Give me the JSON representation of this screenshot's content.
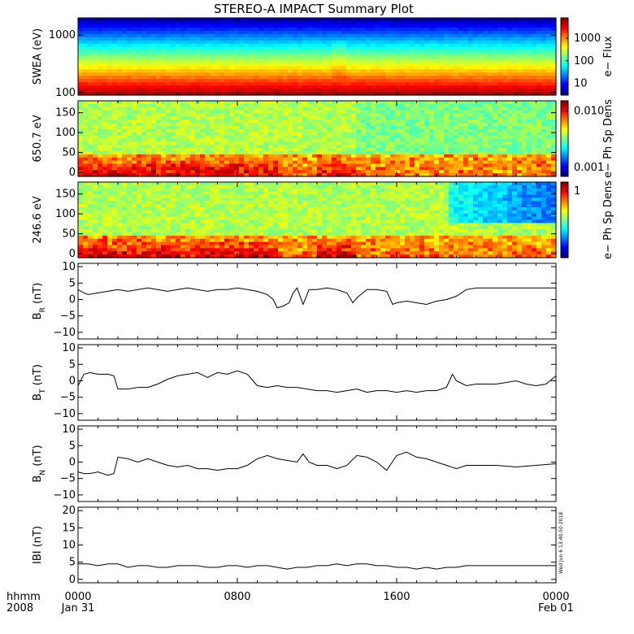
{
  "chart_data": {
    "type": "line",
    "title": "STEREO-A IMPACT Summary Plot",
    "time_axis": {
      "row_label_top": "hhmm",
      "row_label_bottom": "2008",
      "ticks": [
        {
          "time": "0000",
          "date": "Jan 31",
          "hour": 0
        },
        {
          "time": "0800",
          "date": "",
          "hour": 8
        },
        {
          "time": "1600",
          "date": "",
          "hour": 16
        },
        {
          "time": "0000",
          "date": "Feb 01",
          "hour": 24
        }
      ],
      "xlim_hours": [
        0,
        24
      ]
    },
    "stamp": "Wed Jun 6 13:40:50 2018",
    "panels": [
      {
        "id": "swea",
        "type": "heatmap",
        "ylabel": "SWEA (eV)",
        "yscale": "log",
        "ylim": [
          90,
          2000
        ],
        "yticks": [
          {
            "v": 100,
            "label": "100"
          },
          {
            "v": 1000,
            "label": "1000"
          }
        ],
        "colorbar": {
          "label": "e− Flux",
          "scale": "log",
          "range": [
            3,
            8000
          ],
          "ticks": [
            {
              "v": 10,
              "label": "10"
            },
            {
              "v": 100,
              "label": "100"
            },
            {
              "v": 1000,
              "label": "1000"
            }
          ]
        }
      },
      {
        "id": "pad650",
        "type": "heatmap",
        "ylabel": "650.7 eV",
        "ylim": [
          -10,
          180
        ],
        "yticks": [
          {
            "v": 0,
            "label": "0"
          },
          {
            "v": 50,
            "label": "50"
          },
          {
            "v": 100,
            "label": "100"
          },
          {
            "v": 150,
            "label": "150"
          }
        ],
        "colorbar": {
          "label": "e− Ph Sp Dens",
          "scale": "log",
          "range": [
            0.0007,
            0.015
          ],
          "ticks": [
            {
              "v": 0.001,
              "label": "0.001"
            },
            {
              "v": 0.01,
              "label": "0.010"
            }
          ]
        }
      },
      {
        "id": "pad246",
        "type": "heatmap",
        "ylabel": "246.6 eV",
        "ylim": [
          -10,
          180
        ],
        "yticks": [
          {
            "v": 0,
            "label": "0"
          },
          {
            "v": 50,
            "label": "50"
          },
          {
            "v": 100,
            "label": "100"
          },
          {
            "v": 150,
            "label": "150"
          }
        ],
        "colorbar": {
          "label": "e− Ph Sp Dens",
          "scale": "log",
          "range": [
            0.05,
            1.5
          ],
          "ticks": [
            {
              "v": 1,
              "label": "1"
            }
          ]
        }
      },
      {
        "id": "br",
        "type": "line",
        "ylabel": "B",
        "ylabel_sub": "R",
        "ylabel_unit": "(nT)",
        "ylim": [
          -12,
          11
        ],
        "yticks": [
          {
            "v": -10,
            "label": "−10"
          },
          {
            "v": -5,
            "label": "−5"
          },
          {
            "v": 0,
            "label": "0"
          },
          {
            "v": 5,
            "label": "5"
          },
          {
            "v": 10,
            "label": "10"
          }
        ],
        "x": [
          0,
          0.3,
          0.5,
          1,
          1.5,
          2,
          2.5,
          3,
          3.5,
          4,
          4.5,
          5,
          5.5,
          6,
          6.5,
          7,
          7.5,
          8,
          8.5,
          9,
          9.5,
          9.8,
          10,
          10.3,
          10.6,
          10.8,
          11,
          11.3,
          11.6,
          12,
          12.5,
          13,
          13.5,
          13.8,
          14,
          14.5,
          15,
          15.5,
          15.8,
          16,
          16.5,
          17,
          17.5,
          18,
          18.5,
          19,
          19.5,
          20,
          21,
          22,
          23,
          24
        ],
        "y": [
          3,
          2,
          1.5,
          2,
          2.5,
          3,
          2.5,
          3,
          3.5,
          3,
          2.5,
          3,
          3.5,
          3,
          2.5,
          3,
          3,
          3.5,
          3,
          2.5,
          1.5,
          0,
          -2.5,
          -2,
          -1,
          2,
          3.5,
          -1.5,
          3,
          3,
          3.5,
          3,
          2,
          -1,
          0.5,
          3,
          3,
          2.5,
          -1.5,
          -1,
          -0.5,
          -1,
          -1.5,
          -0.5,
          0,
          1,
          3,
          3.5,
          3.5,
          3.5,
          3.5,
          3.5
        ]
      },
      {
        "id": "bt",
        "type": "line",
        "ylabel": "B",
        "ylabel_sub": "T",
        "ylabel_unit": "(nT)",
        "ylim": [
          -12,
          11
        ],
        "yticks": [
          {
            "v": -10,
            "label": "−10"
          },
          {
            "v": -5,
            "label": "−5"
          },
          {
            "v": 0,
            "label": "0"
          },
          {
            "v": 5,
            "label": "5"
          },
          {
            "v": 10,
            "label": "10"
          }
        ],
        "x": [
          0,
          0.3,
          0.6,
          1,
          1.5,
          1.8,
          2,
          2.5,
          3,
          3.5,
          4,
          4.5,
          5,
          5.5,
          6,
          6.5,
          7,
          7.5,
          8,
          8.5,
          9,
          9.5,
          10,
          10.5,
          11,
          11.5,
          12,
          12.5,
          13,
          13.5,
          14,
          14.5,
          15,
          15.5,
          16,
          16.5,
          17,
          17.5,
          18,
          18.5,
          18.8,
          19,
          19.5,
          20,
          21,
          22,
          22.5,
          23,
          23.5,
          24
        ],
        "y": [
          -1.5,
          2,
          2.5,
          2,
          2,
          1.5,
          -2.5,
          -2.5,
          -2,
          -2,
          -1,
          0.5,
          1.5,
          2,
          2.5,
          1,
          2.5,
          2,
          3,
          2,
          -1.5,
          -2,
          -1.5,
          -2,
          -2,
          -2.5,
          -3,
          -3,
          -3.5,
          -3,
          -2.5,
          -3.5,
          -3,
          -3,
          -3.5,
          -3,
          -3.5,
          -3,
          -3,
          -2,
          2,
          0,
          -1.5,
          -1,
          -1,
          0,
          -1,
          -1.5,
          -1,
          1.5
        ]
      },
      {
        "id": "bn",
        "type": "line",
        "ylabel": "B",
        "ylabel_sub": "N",
        "ylabel_unit": "(nT)",
        "ylim": [
          -12,
          11
        ],
        "yticks": [
          {
            "v": -10,
            "label": "−10"
          },
          {
            "v": -5,
            "label": "−5"
          },
          {
            "v": 0,
            "label": "0"
          },
          {
            "v": 5,
            "label": "5"
          },
          {
            "v": 10,
            "label": "10"
          }
        ],
        "x": [
          0,
          0.3,
          0.6,
          1,
          1.5,
          1.8,
          2,
          2.5,
          3,
          3.5,
          4,
          4.5,
          5,
          5.5,
          6,
          6.5,
          7,
          7.5,
          8,
          8.5,
          9,
          9.5,
          10,
          10.5,
          11,
          11.3,
          11.6,
          12,
          12.5,
          13,
          13.5,
          14,
          14.5,
          15,
          15.5,
          16,
          16.5,
          17,
          17.5,
          18,
          18.5,
          19,
          19.5,
          20,
          21,
          22,
          23,
          24
        ],
        "y": [
          -3,
          -3.5,
          -3.5,
          -3,
          -4,
          -3.5,
          1.5,
          1,
          0,
          1,
          0,
          -1,
          -1.5,
          -1,
          -2,
          -2,
          -2.5,
          -2,
          -2,
          -1,
          1,
          2,
          1,
          0.5,
          0,
          2.5,
          0,
          -1,
          -1,
          -2,
          -1,
          2,
          1.5,
          0,
          -2.5,
          2,
          3,
          1.5,
          1,
          0,
          -1,
          -2,
          -1,
          -1,
          -1,
          -1.5,
          -1,
          -0.5
        ]
      },
      {
        "id": "bmag",
        "type": "line",
        "ylabel": "IBI",
        "ylabel_unit": "(nT)",
        "ylim": [
          -1,
          21
        ],
        "yticks": [
          {
            "v": 0,
            "label": "0"
          },
          {
            "v": 5,
            "label": "5"
          },
          {
            "v": 10,
            "label": "10"
          },
          {
            "v": 15,
            "label": "15"
          },
          {
            "v": 20,
            "label": "20"
          }
        ],
        "x": [
          0,
          0.5,
          1,
          1.5,
          2,
          2.5,
          3,
          3.5,
          4,
          4.5,
          5,
          5.5,
          6,
          6.5,
          7,
          7.5,
          8,
          8.5,
          9,
          9.5,
          10,
          10.5,
          11,
          11.5,
          12,
          12.5,
          13,
          13.5,
          14,
          14.5,
          15,
          15.5,
          16,
          16.5,
          17,
          17.5,
          18,
          18.5,
          19,
          19.5,
          20,
          21,
          22,
          23,
          24
        ],
        "y": [
          4.5,
          4.5,
          4,
          4.5,
          4.5,
          3.5,
          4,
          4,
          3.5,
          3.5,
          4,
          4,
          4,
          3.5,
          3.5,
          4,
          4,
          3.5,
          4,
          4,
          3.5,
          3,
          3.5,
          3.5,
          4,
          4,
          4.5,
          4,
          4.5,
          4.5,
          4,
          4,
          3.5,
          3.5,
          3,
          3.5,
          3,
          3.5,
          3.5,
          4,
          4,
          4,
          4,
          4,
          4
        ]
      }
    ]
  }
}
